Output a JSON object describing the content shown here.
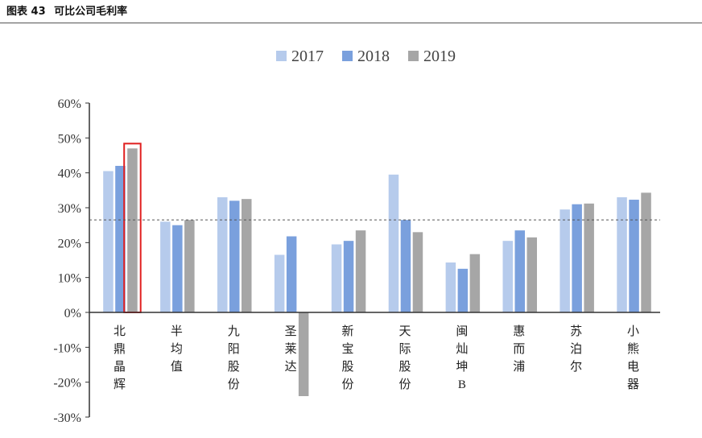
{
  "header": {
    "figure_label": "图表 43",
    "title": "可比公司毛利率"
  },
  "chart_data": {
    "type": "bar",
    "categories": [
      "北鼎晶辉",
      "半均值",
      "九阳股份",
      "圣莱达",
      "新宝股份",
      "天际股份",
      "闽灿坤B",
      "惠而浦",
      "苏泊尔",
      "小熊电器"
    ],
    "series": [
      {
        "name": "2017",
        "values": [
          40.5,
          26.0,
          33.0,
          16.5,
          19.5,
          39.5,
          14.3,
          20.5,
          29.5,
          33.0
        ]
      },
      {
        "name": "2018",
        "values": [
          42.0,
          25.0,
          32.0,
          21.8,
          20.5,
          26.5,
          12.5,
          23.5,
          31.0,
          32.3
        ]
      },
      {
        "name": "2019",
        "values": [
          47.0,
          26.5,
          32.5,
          -24.0,
          23.5,
          23.0,
          16.7,
          21.5,
          31.2,
          34.3
        ]
      }
    ],
    "colors": {
      "2017": "#b6cbec",
      "2018": "#7aa0dd",
      "2019": "#a6a6a6",
      "highlight": "#e02020",
      "reference_line": "#555555"
    },
    "yticks": [
      "60%",
      "50%",
      "40%",
      "30%",
      "20%",
      "10%",
      "0%",
      "-10%",
      "-20%",
      "-30%"
    ],
    "ylim": [
      -30,
      60
    ],
    "reference_line_value": 26.5,
    "highlight_category_index": 0,
    "highlight_series_index": 2,
    "legend_position": "top-center",
    "grid": false
  }
}
